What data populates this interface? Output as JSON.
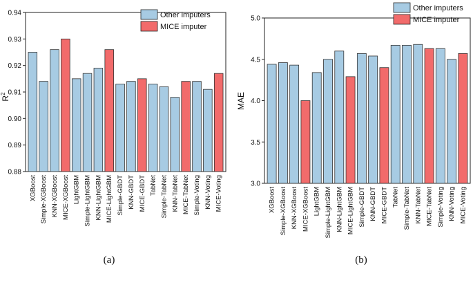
{
  "chart_data": [
    {
      "type": "bar",
      "panel_label": "(a)",
      "ylabel": "R²",
      "ylabel_base": "R",
      "ylabel_sup": "2",
      "ylim": [
        0.88,
        0.94
      ],
      "yticks": [
        "0.88",
        "0.89",
        "0.90",
        "0.91",
        "0.92",
        "0.93",
        "0.94"
      ],
      "yticks_values": [
        0.88,
        0.89,
        0.9,
        0.91,
        0.92,
        0.93,
        0.94
      ],
      "categories": [
        "XGBoost",
        "Simple-XGBoost",
        "KNN-XGBoost",
        "MICE-XGBoost",
        "LightGBM",
        "Simple-LightGBM",
        "KNN-LightGBM",
        "MICE-LightGBM",
        "Simple-GBDT",
        "KNN-GBDT",
        "MICE-GBDT",
        "TabNet",
        "Simple-TabNet",
        "KNN-TabNet",
        "MICE-TabNet",
        "Simple-Voting",
        "KNN-Voting",
        "MICE-Voting"
      ],
      "values": [
        0.925,
        0.914,
        0.926,
        0.93,
        0.915,
        0.917,
        0.919,
        0.926,
        0.913,
        0.914,
        0.915,
        0.913,
        0.912,
        0.908,
        0.914,
        0.914,
        0.911,
        0.917
      ],
      "groups": [
        "other",
        "other",
        "other",
        "mice",
        "other",
        "other",
        "other",
        "mice",
        "other",
        "other",
        "mice",
        "other",
        "other",
        "other",
        "mice",
        "other",
        "other",
        "mice"
      ],
      "legend": [
        {
          "key": "other",
          "label": "Other imputers",
          "color": "#a7cbe3"
        },
        {
          "key": "mice",
          "label": "MICE imputer",
          "color": "#f26b6b"
        }
      ],
      "legend_position": "top-right"
    },
    {
      "type": "bar",
      "panel_label": "(b)",
      "ylabel": "MAE",
      "ylim": [
        3.0,
        5.0
      ],
      "yticks": [
        "3.0",
        "3.5",
        "4.0",
        "4.5",
        "5.0"
      ],
      "yticks_values": [
        3.0,
        3.5,
        4.0,
        4.5,
        5.0
      ],
      "categories": [
        "XGBoost",
        "Simple-XGBoost",
        "KNN-XGBoost",
        "MICE-XGBoost",
        "LightGBM",
        "Simple-LightGBM",
        "KNN-LightGBM",
        "MICE-LightGBM",
        "Simple-GBDT",
        "KNN-GBDT",
        "MICE-GBDT",
        "TabNet",
        "Simple-TabNet",
        "KNN-TabNet",
        "MICE-TabNet",
        "Simple-Voting",
        "KNN-Voting",
        "MICE-Voting"
      ],
      "values": [
        4.44,
        4.46,
        4.43,
        4.0,
        4.34,
        4.5,
        4.6,
        4.29,
        4.57,
        4.54,
        4.4,
        4.67,
        4.67,
        4.68,
        4.63,
        4.63,
        4.5,
        4.57
      ],
      "groups": [
        "other",
        "other",
        "other",
        "mice",
        "other",
        "other",
        "other",
        "mice",
        "other",
        "other",
        "mice",
        "other",
        "other",
        "other",
        "mice",
        "other",
        "other",
        "mice"
      ],
      "legend": [
        {
          "key": "other",
          "label": "Other imputers",
          "color": "#a7cbe3"
        },
        {
          "key": "mice",
          "label": "MICE imputer",
          "color": "#f26b6b"
        }
      ],
      "legend_position": "top-right"
    }
  ]
}
